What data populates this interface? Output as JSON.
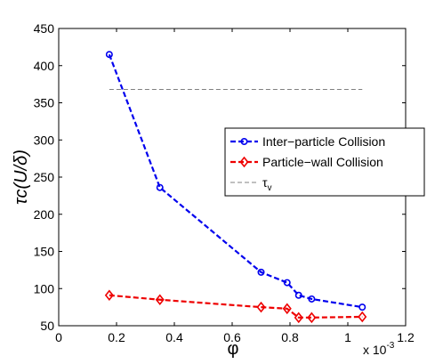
{
  "chart_data": {
    "type": "line",
    "xlabel": "φ",
    "ylabel": "τc(U/δ)",
    "x_multiplier_label": "x 10",
    "x_multiplier_exponent": "-3",
    "xlim": [
      0,
      1.2
    ],
    "ylim": [
      50,
      450
    ],
    "x_ticks": [
      "0",
      "0.2",
      "0.4",
      "0.6",
      "0.8",
      "1",
      "1.2"
    ],
    "y_ticks": [
      "50",
      "100",
      "150",
      "200",
      "250",
      "300",
      "350",
      "400",
      "450"
    ],
    "x_tick_values": [
      0,
      0.2,
      0.4,
      0.6,
      0.8,
      1.0,
      1.2
    ],
    "y_tick_values": [
      50,
      100,
      150,
      200,
      250,
      300,
      350,
      400,
      450
    ],
    "grid": false,
    "legend_position": "right",
    "series": [
      {
        "name": "Inter-particle Collision",
        "color": "#0000ee",
        "marker": "circle",
        "line_style": "dashed",
        "x": [
          0.175,
          0.35,
          0.7,
          0.79,
          0.83,
          0.875,
          1.05
        ],
        "y": [
          415,
          236,
          122,
          108,
          91,
          86,
          75
        ]
      },
      {
        "name": "Particle-wall Collision",
        "color": "#ee0000",
        "marker": "diamond",
        "line_style": "dashed",
        "x": [
          0.175,
          0.35,
          0.7,
          0.79,
          0.83,
          0.875,
          1.05
        ],
        "y": [
          91,
          85,
          75,
          73,
          61,
          61,
          62
        ]
      },
      {
        "name": "τv",
        "color": "#808080",
        "marker": "none",
        "line_style": "dashed",
        "x": [
          0.175,
          1.05
        ],
        "y": [
          368,
          368
        ]
      }
    ],
    "legend": [
      {
        "text": "Inter−particle Collision"
      },
      {
        "text": "Particle−wall Collision"
      },
      {
        "text": "τ",
        "sub": "v"
      }
    ]
  }
}
